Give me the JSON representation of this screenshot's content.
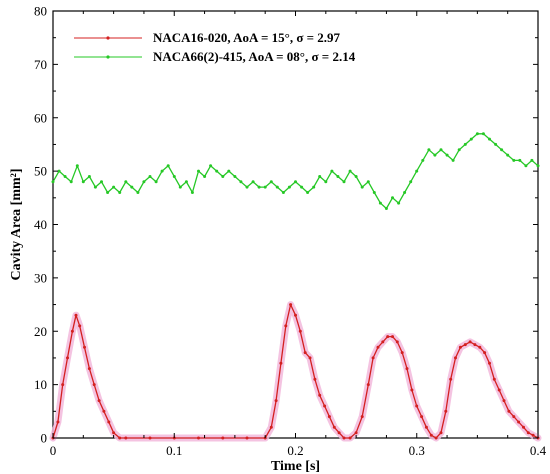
{
  "chart_data": {
    "type": "line",
    "xlabel": "Time [s]",
    "ylabel": "Cavity Area [mm²]",
    "xlim": [
      0,
      0.4
    ],
    "ylim": [
      0,
      80
    ],
    "xticks": [
      "0",
      "0.1",
      "0.2",
      "0.3",
      "0.4"
    ],
    "yticks": [
      "0",
      "10",
      "20",
      "30",
      "40",
      "50",
      "60",
      "70",
      "80"
    ],
    "grid": false,
    "legend_position": "top-left",
    "series": [
      {
        "name": "NACA16-020, AoA = 15°, σ = 2.97",
        "color": "#d42020",
        "x": [
          0,
          0.004,
          0.008,
          0.012,
          0.016,
          0.019,
          0.022,
          0.026,
          0.03,
          0.034,
          0.038,
          0.042,
          0.046,
          0.05,
          0.055,
          0.06,
          0.08,
          0.1,
          0.12,
          0.14,
          0.16,
          0.175,
          0.18,
          0.184,
          0.188,
          0.192,
          0.196,
          0.2,
          0.204,
          0.208,
          0.212,
          0.216,
          0.22,
          0.224,
          0.228,
          0.232,
          0.236,
          0.24,
          0.245,
          0.25,
          0.255,
          0.26,
          0.264,
          0.268,
          0.272,
          0.276,
          0.28,
          0.284,
          0.288,
          0.292,
          0.296,
          0.3,
          0.304,
          0.308,
          0.312,
          0.316,
          0.32,
          0.324,
          0.328,
          0.332,
          0.336,
          0.34,
          0.344,
          0.348,
          0.352,
          0.356,
          0.36,
          0.364,
          0.368,
          0.372,
          0.376,
          0.38,
          0.384,
          0.388,
          0.392,
          0.396,
          0.4
        ],
        "y": [
          0,
          3,
          10,
          15,
          20,
          23,
          21,
          17,
          13,
          10,
          7,
          5,
          3,
          1,
          0,
          0,
          0,
          0,
          0,
          0,
          0,
          0,
          2,
          7,
          14,
          21,
          25,
          23,
          20,
          16,
          15,
          11,
          8,
          6,
          4,
          2,
          1,
          0,
          0,
          1,
          4,
          10,
          15,
          17,
          18,
          19,
          19,
          18,
          16,
          13,
          9,
          6,
          4,
          2,
          0.5,
          0,
          1,
          5,
          11,
          15,
          17,
          17.5,
          18,
          17.5,
          17,
          16,
          14,
          11,
          9,
          7,
          5,
          4,
          3,
          2,
          1,
          0.5,
          0
        ]
      },
      {
        "name": "NACA66(2)-415, AoA = 08°, σ = 2.14",
        "color": "#26c826",
        "x": [
          0,
          0.005,
          0.01,
          0.015,
          0.02,
          0.025,
          0.03,
          0.035,
          0.04,
          0.045,
          0.05,
          0.055,
          0.06,
          0.065,
          0.07,
          0.075,
          0.08,
          0.085,
          0.09,
          0.095,
          0.1,
          0.105,
          0.11,
          0.115,
          0.12,
          0.125,
          0.13,
          0.135,
          0.14,
          0.145,
          0.15,
          0.155,
          0.16,
          0.165,
          0.17,
          0.175,
          0.18,
          0.185,
          0.19,
          0.195,
          0.2,
          0.205,
          0.21,
          0.215,
          0.22,
          0.225,
          0.23,
          0.235,
          0.24,
          0.245,
          0.25,
          0.255,
          0.26,
          0.265,
          0.27,
          0.275,
          0.28,
          0.285,
          0.29,
          0.295,
          0.3,
          0.305,
          0.31,
          0.315,
          0.32,
          0.325,
          0.33,
          0.335,
          0.34,
          0.345,
          0.35,
          0.355,
          0.36,
          0.365,
          0.37,
          0.375,
          0.38,
          0.385,
          0.39,
          0.395,
          0.4
        ],
        "y": [
          48,
          50,
          49,
          48,
          51,
          48,
          49,
          47,
          48,
          46,
          47,
          46,
          48,
          47,
          46,
          48,
          49,
          48,
          50,
          51,
          49,
          47,
          48,
          46,
          50,
          49,
          51,
          50,
          49,
          50,
          49,
          48,
          47,
          48,
          47,
          47,
          48,
          47,
          46,
          47,
          48,
          47,
          46,
          47,
          49,
          48,
          50,
          49,
          48,
          50,
          49,
          47,
          48,
          46,
          44,
          43,
          45,
          44,
          46,
          48,
          50,
          52,
          54,
          53,
          54,
          53,
          52,
          54,
          55,
          56,
          57,
          57,
          56,
          55,
          54,
          53,
          52,
          52,
          51,
          52,
          51
        ]
      }
    ]
  }
}
